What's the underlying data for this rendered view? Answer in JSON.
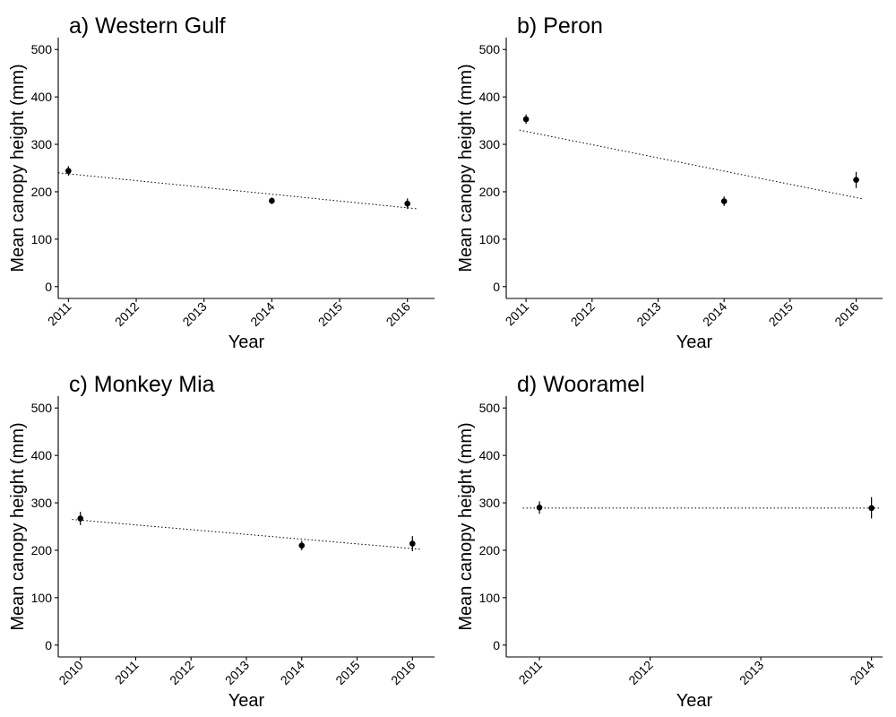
{
  "chart_data": [
    {
      "type": "scatter",
      "title": "a) Western Gulf",
      "xlabel": "Year",
      "ylabel": "Mean canopy height (mm)",
      "xlim": [
        2010.85,
        2016.4
      ],
      "ylim": [
        -25,
        525
      ],
      "x_ticks": [
        2011,
        2012,
        2013,
        2014,
        2015,
        2016
      ],
      "y_ticks": [
        0,
        100,
        200,
        300,
        400,
        500
      ],
      "grid": false,
      "points": [
        {
          "x": 2011,
          "y": 244,
          "lo": 234,
          "hi": 254
        },
        {
          "x": 2014,
          "y": 181,
          "lo": 174,
          "hi": 188
        },
        {
          "x": 2016,
          "y": 175,
          "lo": 164,
          "hi": 186
        }
      ],
      "trend": {
        "x": [
          2010.85,
          2016.15
        ],
        "y": [
          240,
          164
        ]
      }
    },
    {
      "type": "scatter",
      "title": "b) Peron",
      "xlabel": "Year",
      "ylabel": "Mean canopy height (mm)",
      "xlim": [
        2010.7,
        2016.4
      ],
      "ylim": [
        -25,
        525
      ],
      "x_ticks": [
        2011,
        2012,
        2013,
        2014,
        2015,
        2016
      ],
      "y_ticks": [
        0,
        100,
        200,
        300,
        400,
        500
      ],
      "grid": false,
      "points": [
        {
          "x": 2011,
          "y": 353,
          "lo": 343,
          "hi": 363
        },
        {
          "x": 2014,
          "y": 180,
          "lo": 170,
          "hi": 190
        },
        {
          "x": 2016,
          "y": 225,
          "lo": 208,
          "hi": 242
        }
      ],
      "trend": {
        "x": [
          2010.9,
          2016.1
        ],
        "y": [
          330,
          185
        ]
      }
    },
    {
      "type": "scatter",
      "title": "c) Monkey Mia",
      "xlabel": "Year",
      "ylabel": "Mean canopy height (mm)",
      "xlim": [
        2009.6,
        2016.4
      ],
      "ylim": [
        -25,
        525
      ],
      "x_ticks": [
        2010,
        2011,
        2012,
        2013,
        2014,
        2015,
        2016
      ],
      "y_ticks": [
        0,
        100,
        200,
        300,
        400,
        500
      ],
      "grid": false,
      "points": [
        {
          "x": 2010,
          "y": 267,
          "lo": 253,
          "hi": 281
        },
        {
          "x": 2014,
          "y": 210,
          "lo": 200,
          "hi": 220
        },
        {
          "x": 2016,
          "y": 214,
          "lo": 198,
          "hi": 230
        }
      ],
      "trend": {
        "x": [
          2009.85,
          2016.15
        ],
        "y": [
          265,
          202
        ]
      }
    },
    {
      "type": "scatter",
      "title": "d) Wooramel",
      "xlabel": "Year",
      "ylabel": "Mean canopy height (mm)",
      "xlim": [
        2010.7,
        2014.1
      ],
      "ylim": [
        -25,
        525
      ],
      "x_ticks": [
        2011,
        2012,
        2013,
        2014
      ],
      "y_ticks": [
        0,
        100,
        200,
        300,
        400,
        500
      ],
      "grid": false,
      "points": [
        {
          "x": 2011,
          "y": 290,
          "lo": 277,
          "hi": 303
        },
        {
          "x": 2014,
          "y": 289,
          "lo": 267,
          "hi": 312
        }
      ],
      "trend": {
        "x": [
          2010.85,
          2014.08
        ],
        "y": [
          289,
          289
        ]
      }
    }
  ]
}
